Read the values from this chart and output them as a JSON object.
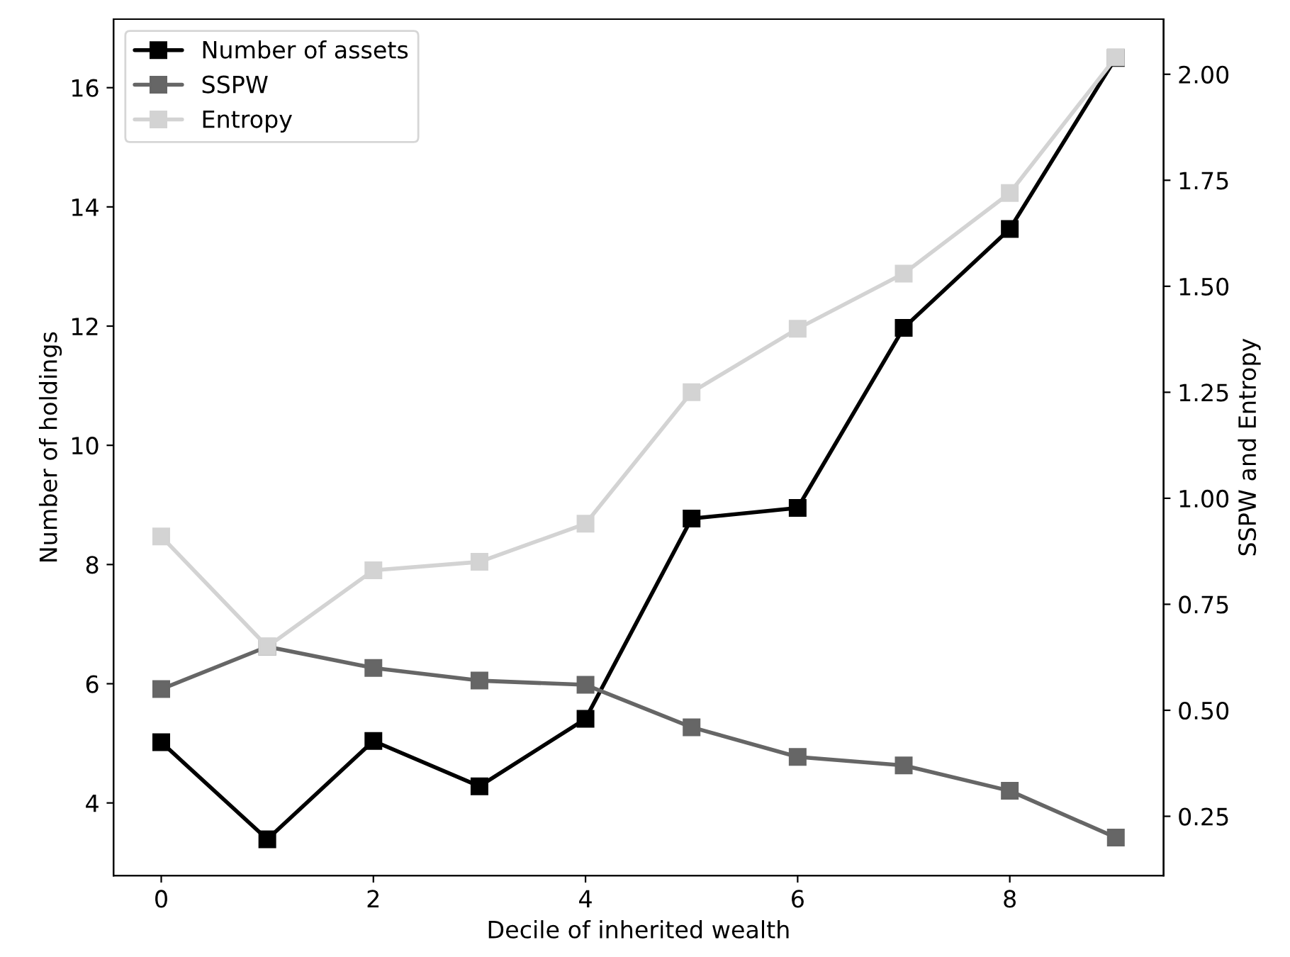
{
  "chart_data": {
    "type": "line",
    "xlabel": "Decile of inherited wealth",
    "ylabel": "Number of holdings",
    "y2label": "SSPW and Entropy",
    "x": [
      0,
      1,
      2,
      3,
      4,
      5,
      6,
      7,
      8,
      9
    ],
    "series": [
      {
        "name": "Number of assets",
        "color": "#000000",
        "values": [
          5.02,
          3.39,
          5.04,
          4.28,
          5.41,
          8.77,
          8.95,
          11.97,
          13.63,
          16.5
        ]
      },
      {
        "name": "SSPW",
        "color": "#666666",
        "axis": "y2",
        "values": [
          0.55,
          0.65,
          0.6,
          0.57,
          0.56,
          0.46,
          0.39,
          0.37,
          0.31,
          0.2
        ]
      },
      {
        "name": "Entropy",
        "color": "#d3d3d3",
        "axis": "y2",
        "values": [
          0.91,
          0.65,
          0.83,
          0.85,
          0.94,
          1.25,
          1.4,
          1.53,
          1.72,
          2.04
        ]
      }
    ],
    "xlim": [
      -0.45,
      9.45
    ],
    "xticks": [
      0,
      2,
      4,
      6,
      8
    ],
    "ylim": [
      2.78,
      17.15
    ],
    "yticks": [
      4,
      6,
      8,
      10,
      12,
      14,
      16
    ],
    "y2lim": [
      0.11,
      2.13
    ],
    "y2ticks": [
      {
        "value": 0.25,
        "label": "0.25"
      },
      {
        "value": 0.5,
        "label": "0.50"
      },
      {
        "value": 0.75,
        "label": "0.75"
      },
      {
        "value": 1.0,
        "label": "1.00"
      },
      {
        "value": 1.25,
        "label": "1.25"
      },
      {
        "value": 1.5,
        "label": "1.50"
      },
      {
        "value": 1.75,
        "label": "1.75"
      },
      {
        "value": 2.0,
        "label": "2.00"
      }
    ],
    "marker": "square",
    "line_style": "solid",
    "grid": false,
    "legend": "top left"
  }
}
